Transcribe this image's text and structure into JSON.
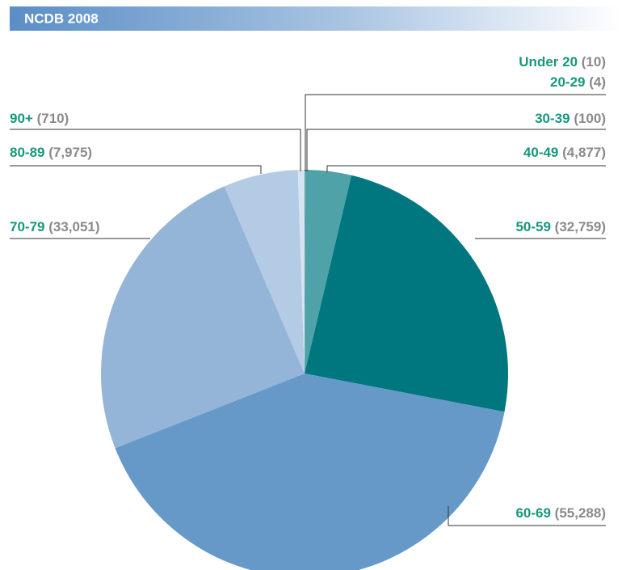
{
  "chart_data": {
    "type": "pie",
    "title": "NCDB 2008",
    "categories": [
      "Under 20",
      "20-29",
      "30-39",
      "40-49",
      "50-59",
      "60-69",
      "70-79",
      "80-89",
      "90+"
    ],
    "values": [
      10,
      4,
      100,
      4877,
      32759,
      55288,
      33051,
      7975,
      710
    ],
    "value_labels": [
      "(10)",
      "(4)",
      "(100)",
      "(4,877)",
      "(32,759)",
      "(55,288)",
      "(33,051)",
      "(7,975)",
      "(710)"
    ],
    "colors": [
      "#3f9a9e",
      "#3f9a9e",
      "#3f9a9e",
      "#4fa3a8",
      "#00777f",
      "#6699c8",
      "#94b5d8",
      "#b3cbe4",
      "#d6e3f0"
    ]
  }
}
